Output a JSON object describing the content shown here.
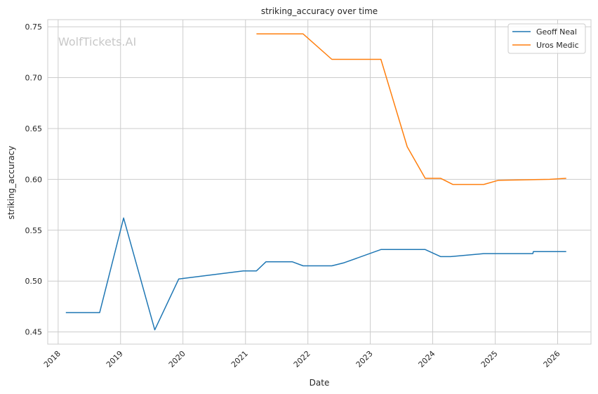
{
  "watermark": "WolfTickets.AI",
  "chart_data": {
    "type": "line",
    "title": "striking_accuracy over time",
    "xlabel": "Date",
    "ylabel": "striking_accuracy",
    "x_ticks": [
      "2018",
      "2019",
      "2020",
      "2021",
      "2022",
      "2023",
      "2024",
      "2025",
      "2026"
    ],
    "y_ticks": [
      "0.45",
      "0.50",
      "0.55",
      "0.60",
      "0.65",
      "0.70",
      "0.75"
    ],
    "xlim": [
      "2017-11-01",
      "2026-07-15"
    ],
    "ylim": [
      0.438,
      0.757
    ],
    "grid": true,
    "legend_position": "top-right",
    "series": [
      {
        "name": "Geoff Neal",
        "color": "#1f77b4",
        "points": [
          [
            "2018-02-15",
            0.469
          ],
          [
            "2018-09-01",
            0.469
          ],
          [
            "2019-01-19",
            0.562
          ],
          [
            "2019-07-20",
            0.452
          ],
          [
            "2019-12-07",
            0.502
          ],
          [
            "2020-12-19",
            0.51
          ],
          [
            "2021-03-06",
            0.51
          ],
          [
            "2021-05-01",
            0.519
          ],
          [
            "2021-10-01",
            0.519
          ],
          [
            "2021-12-04",
            0.515
          ],
          [
            "2022-05-21",
            0.515
          ],
          [
            "2022-08-01",
            0.518
          ],
          [
            "2023-03-04",
            0.531
          ],
          [
            "2023-11-18",
            0.531
          ],
          [
            "2024-02-17",
            0.524
          ],
          [
            "2024-04-15",
            0.524
          ],
          [
            "2024-10-26",
            0.527
          ],
          [
            "2025-08-09",
            0.527
          ],
          [
            "2025-08-12",
            0.529
          ],
          [
            "2026-02-20",
            0.529
          ]
        ]
      },
      {
        "name": "Uros Medic",
        "color": "#ff7f0e",
        "points": [
          [
            "2021-03-06",
            0.743
          ],
          [
            "2021-12-04",
            0.743
          ],
          [
            "2022-05-21",
            0.718
          ],
          [
            "2023-03-04",
            0.718
          ],
          [
            "2023-08-05",
            0.632
          ],
          [
            "2023-11-18",
            0.601
          ],
          [
            "2024-02-17",
            0.601
          ],
          [
            "2024-04-27",
            0.595
          ],
          [
            "2024-10-26",
            0.595
          ],
          [
            "2025-01-18",
            0.599
          ],
          [
            "2025-11-15",
            0.6
          ],
          [
            "2026-02-20",
            0.601
          ]
        ]
      }
    ]
  }
}
